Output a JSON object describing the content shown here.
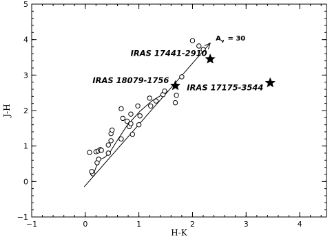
{
  "chart_data": {
    "type": "scatter",
    "xlabel": "H-K",
    "ylabel": "J-H",
    "xlim": [
      -1,
      4.5
    ],
    "ylim": [
      -1,
      5
    ],
    "x_ticks": [
      -1,
      0,
      1,
      2,
      3,
      4
    ],
    "y_ticks": [
      -1,
      0,
      1,
      2,
      3,
      4,
      5
    ],
    "grid": false,
    "series": [
      {
        "marker": "open-circle",
        "points": [
          [
            0.08,
            0.82
          ],
          [
            0.2,
            0.84
          ],
          [
            0.24,
            0.86
          ],
          [
            0.28,
            0.9
          ],
          [
            0.3,
            0.88
          ],
          [
            0.14,
            0.22
          ],
          [
            0.12,
            0.28
          ],
          [
            0.22,
            0.53
          ],
          [
            0.25,
            0.63
          ],
          [
            0.43,
            0.8
          ],
          [
            0.43,
            1.03
          ],
          [
            0.48,
            1.15
          ],
          [
            0.48,
            1.35
          ],
          [
            0.5,
            1.45
          ],
          [
            0.67,
            1.2
          ],
          [
            0.67,
            2.05
          ],
          [
            0.7,
            1.78
          ],
          [
            0.78,
            1.7
          ],
          [
            0.82,
            1.55
          ],
          [
            0.85,
            1.63
          ],
          [
            0.85,
            1.9
          ],
          [
            0.88,
            1.33
          ],
          [
            0.98,
            2.13
          ],
          [
            1.0,
            1.6
          ],
          [
            1.02,
            1.85
          ],
          [
            1.2,
            2.35
          ],
          [
            1.22,
            2.13
          ],
          [
            1.32,
            2.27
          ],
          [
            1.45,
            2.45
          ],
          [
            1.48,
            2.55
          ],
          [
            1.68,
            2.22
          ],
          [
            1.7,
            2.43
          ],
          [
            1.8,
            2.95
          ],
          [
            2.0,
            3.97
          ],
          [
            2.12,
            3.82
          ],
          [
            2.2,
            3.72
          ]
        ]
      },
      {
        "marker": "filled-star",
        "points": [
          [
            2.33,
            3.45
          ],
          [
            1.68,
            2.7
          ],
          [
            3.45,
            2.78
          ]
        ]
      }
    ],
    "curve": [
      [
        0.15,
        0.2
      ],
      [
        0.2,
        0.4
      ],
      [
        0.28,
        0.62
      ],
      [
        0.36,
        0.68
      ],
      [
        0.45,
        0.8
      ],
      [
        0.58,
        1.12
      ],
      [
        0.78,
        1.58
      ],
      [
        1.02,
        1.98
      ],
      [
        1.25,
        2.28
      ],
      [
        1.55,
        2.55
      ]
    ],
    "reddening_vector": {
      "from": [
        -0.02,
        -0.15
      ],
      "to": [
        2.33,
        3.9
      ],
      "label": "A",
      "label_sub": "v",
      "label_value": "= 30"
    },
    "annotations": [
      {
        "text": "IRAS 17441-2910",
        "x": 2.35,
        "y": 3.62
      },
      {
        "text": "IRAS 18079-1756",
        "x": 1.64,
        "y": 2.85
      },
      {
        "text": "IRAS 17175-3544",
        "x": 3.4,
        "y": 2.65
      }
    ]
  }
}
